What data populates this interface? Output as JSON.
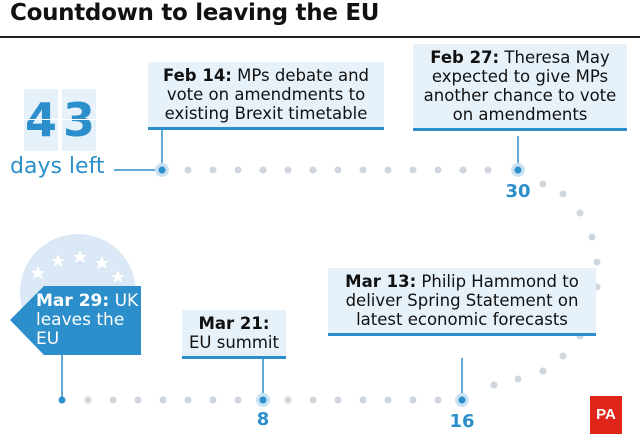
{
  "title": "Countdown to leaving the EU",
  "countdown": {
    "digits": [
      "4",
      "3"
    ],
    "label": "days left"
  },
  "events": [
    {
      "date": "Feb 14:",
      "text": "MPs debate and vote on amendments to existing Brexit timetable"
    },
    {
      "date": "Feb 27:",
      "text": "Theresa May expected to give MPs another chance to vote on amendments",
      "days": "30"
    },
    {
      "date": "Mar 13:",
      "text": "Philip Hammond to deliver Spring Statement on latest economic forecasts",
      "days": "16"
    },
    {
      "date": "Mar 21:",
      "text": "EU summit",
      "days": "8"
    },
    {
      "date": "Mar 29:",
      "text": "UK leaves the EU"
    }
  ],
  "credit": "PA",
  "colors": {
    "accent": "#2c8fcb",
    "box": "#e6f1fa",
    "dots": "#cfd6dd",
    "credit": "#e0261b"
  }
}
